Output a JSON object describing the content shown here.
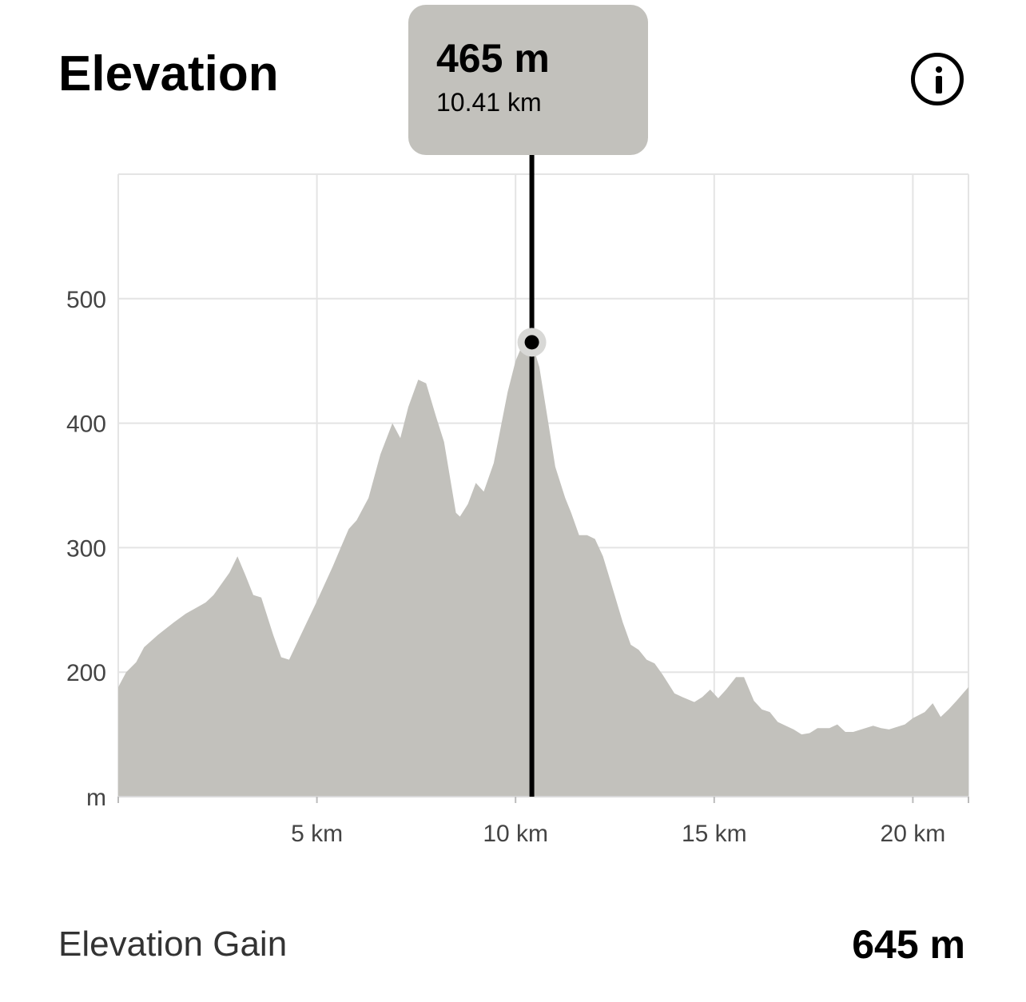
{
  "header": {
    "title": "Elevation"
  },
  "tooltip": {
    "value": "465 m",
    "distance": "10.41 km",
    "x_km": 10.41,
    "y_m": 465
  },
  "summary": {
    "label": "Elevation Gain",
    "value": "645 m"
  },
  "colors": {
    "area": "#c2c1bc",
    "grid": "#e4e4e4",
    "cursor": "#000000",
    "tooltip_bg": "#c2c1bc"
  },
  "icons": {
    "info": "info-circle-icon"
  },
  "chart_data": {
    "type": "area",
    "title": "",
    "xlabel": "",
    "ylabel": "m",
    "xlim": [
      0,
      21.4
    ],
    "ylim": [
      100,
      600
    ],
    "grid": true,
    "x_ticks": [
      5,
      10,
      15,
      20
    ],
    "x_tick_labels": [
      "5 km",
      "10 km",
      "15 km",
      "20 km"
    ],
    "y_ticks": [
      200,
      300,
      400,
      500
    ],
    "y_tick_labels": [
      "200",
      "300",
      "400",
      "500"
    ],
    "y_unit_label": "m",
    "series": [
      {
        "x": [
          0,
          0.2,
          0.45,
          0.65,
          1.0,
          1.4,
          1.7,
          2.2,
          2.4,
          2.8,
          3.0,
          3.2,
          3.4,
          3.6,
          3.9,
          4.1,
          4.3,
          4.7,
          5.0,
          5.4,
          5.6,
          5.8,
          6.0,
          6.3,
          6.6,
          6.9,
          7.1,
          7.3,
          7.55,
          7.75,
          8.0,
          8.2,
          8.5,
          8.6,
          8.8,
          9.0,
          9.2,
          9.45,
          9.8,
          10.0,
          10.2,
          10.41,
          10.6,
          10.8,
          11.0,
          11.25,
          11.4,
          11.6,
          11.8,
          12.0,
          12.2,
          12.4,
          12.7,
          12.9,
          13.1,
          13.3,
          13.5,
          13.7,
          14.0,
          14.2,
          14.5,
          14.7,
          14.9,
          15.1,
          15.3,
          15.55,
          15.75,
          16.0,
          16.2,
          16.4,
          16.6,
          16.8,
          17.0,
          17.2,
          17.4,
          17.6,
          17.9,
          18.1,
          18.3,
          18.5,
          18.7,
          19.0,
          19.2,
          19.4,
          19.6,
          19.8,
          20.0,
          20.3,
          20.5,
          20.7,
          20.9,
          21.1,
          21.4
        ],
        "y": [
          188,
          200,
          208,
          220,
          230,
          240,
          247,
          256,
          262,
          280,
          293,
          278,
          262,
          260,
          230,
          212,
          210,
          237,
          257,
          285,
          300,
          315,
          322,
          340,
          375,
          400,
          388,
          413,
          435,
          432,
          405,
          385,
          328,
          325,
          335,
          352,
          345,
          368,
          425,
          450,
          465,
          465,
          445,
          405,
          365,
          340,
          328,
          310,
          310,
          307,
          293,
          272,
          240,
          222,
          218,
          210,
          207,
          198,
          183,
          180,
          176,
          180,
          186,
          179,
          186,
          196,
          196,
          177,
          170,
          168,
          160,
          157,
          154,
          150,
          151,
          155,
          155,
          158,
          152,
          152,
          154,
          157,
          155,
          154,
          156,
          158,
          163,
          168,
          175,
          164,
          170,
          177,
          188
        ]
      }
    ]
  }
}
